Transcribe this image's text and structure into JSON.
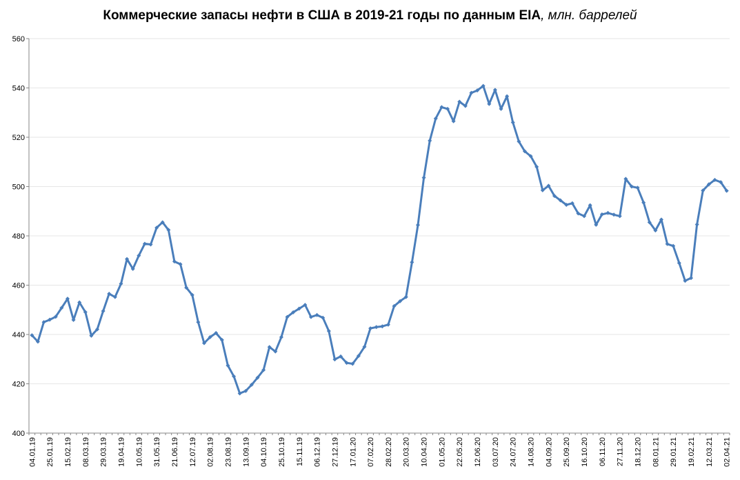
{
  "chart_data": {
    "type": "line",
    "title": "Коммерческие запасы нефти в США в 2019-21 годы по данным EIA",
    "unit": ", млн. баррелей",
    "xlabel": "",
    "ylabel": "",
    "ylim": [
      400,
      560
    ],
    "yticks": [
      "400",
      "420",
      "440",
      "460",
      "480",
      "500",
      "520",
      "540",
      "560"
    ],
    "grid": true,
    "legend": "none",
    "line_color": "#4a7ebb",
    "tick_labels": [
      "04.01.19",
      "25.01.19",
      "15.02.19",
      "08.03.19",
      "29.03.19",
      "19.04.19",
      "10.05.19",
      "31.05.19",
      "21.06.19",
      "12.07.19",
      "02.08.19",
      "23.08.19",
      "13.09.19",
      "04.10.19",
      "25.10.19",
      "15.11.19",
      "06.12.19",
      "27.12.19",
      "17.01.20",
      "07.02.20",
      "28.02.20",
      "20.03.20",
      "10.04.20",
      "01.05.20",
      "22.05.20",
      "12.06.20",
      "03.07.20",
      "24.07.20",
      "14.08.20",
      "04.09.20",
      "25.09.20",
      "16.10.20",
      "06.11.20",
      "27.11.20",
      "18.12.20",
      "08.01.21",
      "29.01.21",
      "19.02.21",
      "12.03.21",
      "02.04.21"
    ],
    "series": [
      {
        "values": [
          439.7,
          437.1,
          445.0,
          446.0,
          447.2,
          450.8,
          454.5,
          445.9,
          453.0,
          449.1,
          439.5,
          442.1,
          449.5,
          456.5,
          455.2,
          460.6,
          470.6,
          466.6,
          472.0,
          476.8,
          476.5,
          483.3,
          485.5,
          482.4,
          469.6,
          468.5,
          459.0,
          456.0,
          445.0,
          436.5,
          438.9,
          440.6,
          437.8,
          427.4,
          423.0,
          416.1,
          417.1,
          419.6,
          422.5,
          425.6,
          434.9,
          433.1,
          438.9,
          447.1,
          449.0,
          450.5,
          452.0,
          447.1,
          447.9,
          446.8,
          441.4,
          429.9,
          431.1,
          428.5,
          428.1,
          431.3,
          435.0,
          442.5,
          443.0,
          443.3,
          444.0,
          451.5,
          453.5,
          455.2,
          469.3,
          484.4,
          503.6,
          518.6,
          527.6,
          532.2,
          531.5,
          526.5,
          534.4,
          532.7,
          538.0,
          539.0,
          540.8,
          533.5,
          539.2,
          531.5,
          536.6,
          526.0,
          518.3,
          514.3,
          512.3,
          508.0,
          498.5,
          500.3,
          496.2,
          494.4,
          492.6,
          493.2,
          489.1,
          488.0,
          492.4,
          484.5,
          488.7,
          489.3,
          488.6,
          488.0,
          503.1,
          500.0,
          499.5,
          493.5,
          485.5,
          482.2,
          486.6,
          476.7,
          475.9,
          469.0,
          461.8,
          462.9,
          484.6,
          498.4,
          500.9,
          502.7,
          501.8,
          498.3
        ]
      }
    ]
  }
}
